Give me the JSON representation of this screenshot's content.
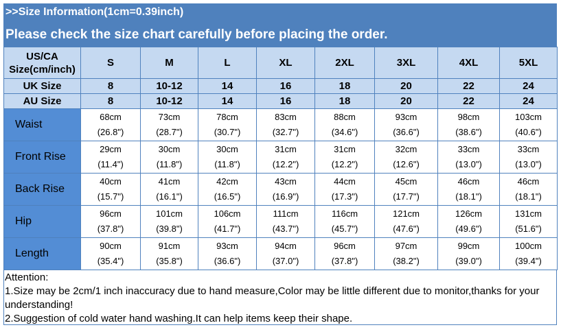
{
  "banner": {
    "title": ">>Size Information(1cm=0.39inch)",
    "subtitle": "Please check the size chart carefully before placing the order."
  },
  "colors": {
    "banner": "#4f81bd",
    "header_bg": "#c5d9f1",
    "row_label_bg": "#538dd5",
    "border": "#4f81bd"
  },
  "table": {
    "header_rows": [
      {
        "label": "US/CA Size(cm/inch)",
        "values": [
          "S",
          "M",
          "L",
          "XL",
          "2XL",
          "3XL",
          "4XL",
          "5XL"
        ]
      },
      {
        "label": "UK Size",
        "values": [
          "8",
          "10-12",
          "14",
          "16",
          "18",
          "20",
          "22",
          "24"
        ]
      },
      {
        "label": "AU Size",
        "values": [
          "8",
          "10-12",
          "14",
          "16",
          "18",
          "20",
          "22",
          "24"
        ]
      }
    ],
    "rows": [
      {
        "name": "Waist",
        "cm": [
          "68cm",
          "73cm",
          "78cm",
          "83cm",
          "88cm",
          "93cm",
          "98cm",
          "103cm"
        ],
        "inch": [
          "(26.8\")",
          "(28.7\")",
          "(30.7\")",
          "(32.7\")",
          "(34.6\")",
          "(36.6\")",
          "(38.6\")",
          "(40.6\")"
        ]
      },
      {
        "name": "Front Rise",
        "cm": [
          "29cm",
          "30cm",
          "30cm",
          "31cm",
          "31cm",
          "32cm",
          "33cm",
          "33cm"
        ],
        "inch": [
          "(11.4\")",
          "(11.8\")",
          "(11.8\")",
          "(12.2\")",
          "(12.2\")",
          "(12.6\")",
          "(13.0\")",
          "(13.0\")"
        ]
      },
      {
        "name": "Back Rise",
        "cm": [
          "40cm",
          "41cm",
          "42cm",
          "43cm",
          "44cm",
          "45cm",
          "46cm",
          "46cm"
        ],
        "inch": [
          "(15.7\")",
          "(16.1\")",
          "(16.5\")",
          "(16.9\")",
          "(17.3\")",
          "(17.7\")",
          "(18.1\")",
          "(18.1\")"
        ]
      },
      {
        "name": "Hip",
        "cm": [
          "96cm",
          "101cm",
          "106cm",
          "111cm",
          "116cm",
          "121cm",
          "126cm",
          "131cm"
        ],
        "inch": [
          "(37.8\")",
          "(39.8\")",
          "(41.7\")",
          "(43.7\")",
          "(45.7\")",
          "(47.6\")",
          "(49.6\")",
          "(51.6\")"
        ]
      },
      {
        "name": "Length",
        "cm": [
          "90cm",
          "91cm",
          "93cm",
          "94cm",
          "96cm",
          "97cm",
          "99cm",
          "100cm"
        ],
        "inch": [
          "(35.4\")",
          "(35.8\")",
          "(36.6\")",
          "(37.0\")",
          "(37.8\")",
          "(38.2\")",
          "(39.0\")",
          "(39.4\")"
        ]
      }
    ]
  },
  "attention": {
    "title": "Attention:",
    "lines": [
      "1.Size may be 2cm/1 inch inaccuracy due to hand measure,Color may be little different due to monitor,thanks for your understanding!",
      "2.Suggestion of cold water hand washing.It can help items keep their shape."
    ]
  }
}
